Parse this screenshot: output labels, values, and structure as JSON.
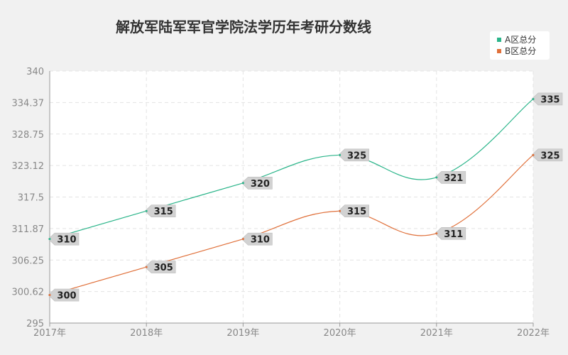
{
  "chart_data": {
    "type": "line",
    "title": "解放军陆军军官学院法学历年考研分数线",
    "categories": [
      "2017年",
      "2018年",
      "2019年",
      "2020年",
      "2021年",
      "2022年"
    ],
    "series": [
      {
        "name": "A区总分",
        "values": [
          310,
          315,
          320,
          325,
          321,
          335
        ],
        "color": "#2bb58a"
      },
      {
        "name": "B区总分",
        "values": [
          300,
          305,
          310,
          315,
          311,
          325
        ],
        "color": "#e0703a"
      }
    ],
    "ylim": [
      295,
      340
    ],
    "yticks": [
      "295",
      "300.62",
      "306.25",
      "311.87",
      "317.5",
      "323.12",
      "328.75",
      "334.37",
      "340"
    ],
    "grid": true,
    "legend_position": "top-right"
  }
}
